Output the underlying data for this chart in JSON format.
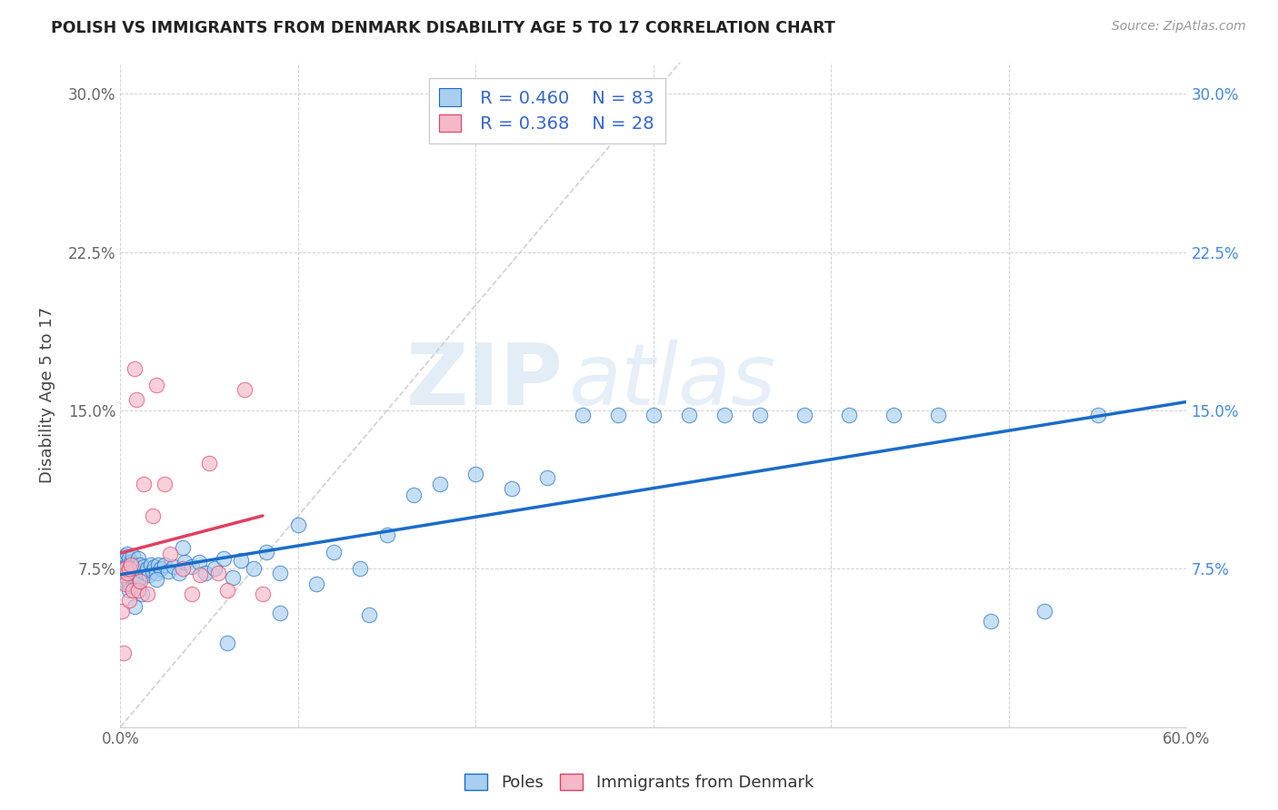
{
  "title": "POLISH VS IMMIGRANTS FROM DENMARK DISABILITY AGE 5 TO 17 CORRELATION CHART",
  "source": "Source: ZipAtlas.com",
  "ylabel": "Disability Age 5 to 17",
  "xlim": [
    0.0,
    0.6
  ],
  "ylim": [
    0.0,
    0.315
  ],
  "xtick_vals": [
    0.0,
    0.1,
    0.2,
    0.3,
    0.4,
    0.5,
    0.6
  ],
  "xtick_labs": [
    "0.0%",
    "",
    "",
    "",
    "",
    "",
    "60.0%"
  ],
  "ytick_vals": [
    0.0,
    0.075,
    0.15,
    0.225,
    0.3
  ],
  "ytick_labs_left": [
    "",
    "7.5%",
    "15.0%",
    "22.5%",
    "30.0%"
  ],
  "ytick_labs_right": [
    "",
    "7.5%",
    "15.0%",
    "22.5%",
    "30.0%"
  ],
  "R_poles": 0.46,
  "N_poles": 83,
  "R_denmark": 0.368,
  "N_denmark": 28,
  "color_poles": "#A8CEF0",
  "color_denmark": "#F5B8C8",
  "trendline_poles_color": "#1A6CC8",
  "trendline_denmark_color": "#E04060",
  "diagonal_color": "#D0D0D0",
  "poles_x": [
    0.001,
    0.002,
    0.002,
    0.003,
    0.003,
    0.003,
    0.004,
    0.004,
    0.004,
    0.005,
    0.005,
    0.005,
    0.006,
    0.006,
    0.007,
    0.007,
    0.007,
    0.008,
    0.008,
    0.009,
    0.009,
    0.01,
    0.01,
    0.01,
    0.011,
    0.011,
    0.012,
    0.013,
    0.014,
    0.015,
    0.016,
    0.017,
    0.018,
    0.019,
    0.02,
    0.021,
    0.023,
    0.025,
    0.027,
    0.03,
    0.033,
    0.036,
    0.04,
    0.044,
    0.048,
    0.053,
    0.058,
    0.063,
    0.068,
    0.075,
    0.082,
    0.09,
    0.1,
    0.11,
    0.12,
    0.135,
    0.15,
    0.165,
    0.18,
    0.2,
    0.22,
    0.24,
    0.26,
    0.28,
    0.3,
    0.32,
    0.34,
    0.36,
    0.385,
    0.41,
    0.435,
    0.46,
    0.49,
    0.52,
    0.55,
    0.005,
    0.008,
    0.012,
    0.02,
    0.035,
    0.06,
    0.09,
    0.14
  ],
  "poles_y": [
    0.072,
    0.075,
    0.079,
    0.069,
    0.075,
    0.081,
    0.07,
    0.077,
    0.082,
    0.068,
    0.075,
    0.08,
    0.072,
    0.078,
    0.07,
    0.076,
    0.081,
    0.071,
    0.077,
    0.07,
    0.076,
    0.069,
    0.075,
    0.08,
    0.071,
    0.077,
    0.074,
    0.076,
    0.073,
    0.075,
    0.072,
    0.077,
    0.074,
    0.076,
    0.073,
    0.077,
    0.075,
    0.077,
    0.074,
    0.076,
    0.073,
    0.078,
    0.076,
    0.078,
    0.073,
    0.075,
    0.08,
    0.071,
    0.079,
    0.075,
    0.083,
    0.073,
    0.096,
    0.068,
    0.083,
    0.075,
    0.091,
    0.11,
    0.115,
    0.12,
    0.113,
    0.118,
    0.148,
    0.148,
    0.148,
    0.148,
    0.148,
    0.148,
    0.148,
    0.148,
    0.148,
    0.148,
    0.05,
    0.055,
    0.148,
    0.065,
    0.057,
    0.063,
    0.07,
    0.085,
    0.04,
    0.054,
    0.053
  ],
  "denmark_x": [
    0.001,
    0.002,
    0.003,
    0.003,
    0.004,
    0.005,
    0.005,
    0.006,
    0.007,
    0.008,
    0.009,
    0.01,
    0.011,
    0.013,
    0.015,
    0.018,
    0.02,
    0.025,
    0.028,
    0.035,
    0.04,
    0.045,
    0.05,
    0.055,
    0.06,
    0.07,
    0.08,
    0.002
  ],
  "denmark_y": [
    0.055,
    0.072,
    0.068,
    0.075,
    0.073,
    0.06,
    0.075,
    0.077,
    0.065,
    0.17,
    0.155,
    0.065,
    0.069,
    0.115,
    0.063,
    0.1,
    0.162,
    0.115,
    0.082,
    0.075,
    0.063,
    0.072,
    0.125,
    0.073,
    0.065,
    0.16,
    0.063,
    0.035
  ],
  "watermark_zip": "ZIP",
  "watermark_atlas": "atlas"
}
